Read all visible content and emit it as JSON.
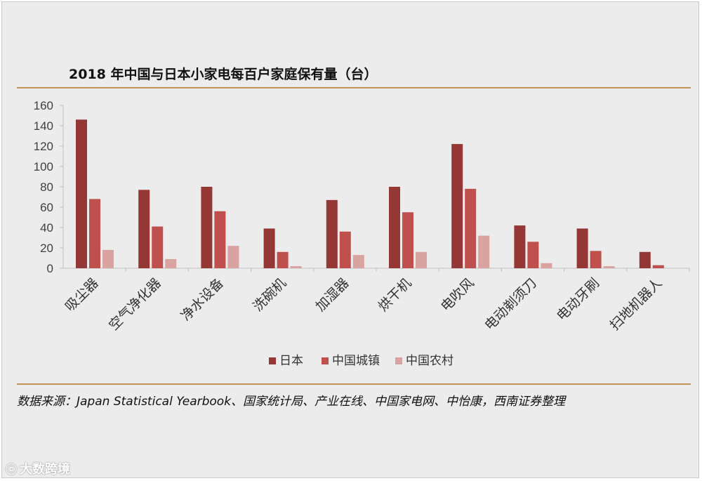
{
  "title": "2018 年中国与日本小家电每百户家庭保有量（台）",
  "source": "数据来源：Japan Statistical Yearbook、国家统计局、产业在线、中国家电网、中怡康，西南证券整理",
  "watermark": "大数跨境",
  "colors": {
    "japan": "#953735",
    "urban": "#c0504d",
    "rural": "#d9a3a2",
    "rule": "#bf9256",
    "axis": "#bfbfbf"
  },
  "chart_data": {
    "type": "bar",
    "title": "2018 年中国与日本小家电每百户家庭保有量（台）",
    "categories": [
      "吸尘器",
      "空气净化器",
      "净水设备",
      "洗碗机",
      "加湿器",
      "烘干机",
      "电吹风",
      "电动剃须刀",
      "电动牙刷",
      "扫地机器人"
    ],
    "series": [
      {
        "name": "日本",
        "values": [
          146,
          77,
          80,
          39,
          67,
          80,
          122,
          42,
          39,
          16
        ]
      },
      {
        "name": "中国城镇",
        "values": [
          68,
          41,
          56,
          16,
          36,
          55,
          78,
          26,
          17,
          3
        ]
      },
      {
        "name": "中国农村",
        "values": [
          18,
          9,
          22,
          2,
          13,
          16,
          32,
          5,
          2,
          0
        ]
      }
    ],
    "ylim": [
      0,
      160
    ],
    "yticks": [
      0,
      20,
      40,
      60,
      80,
      100,
      120,
      140,
      160
    ],
    "grid": false,
    "legend_position": "bottom"
  }
}
